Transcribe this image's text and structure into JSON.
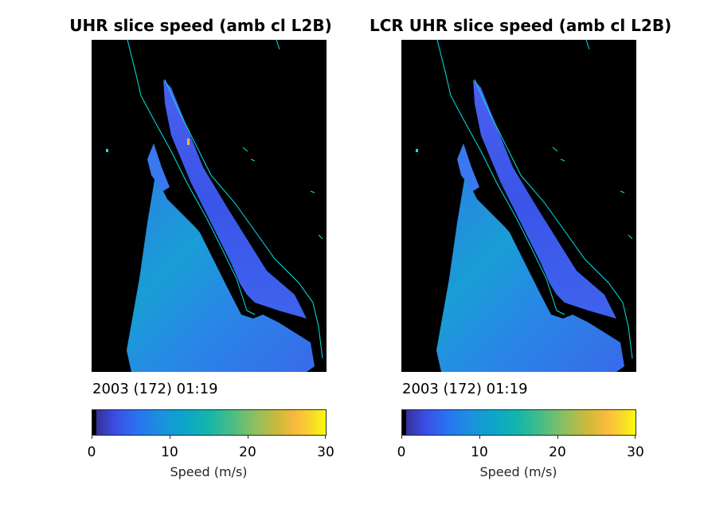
{
  "figure": {
    "colormap": "parula",
    "coast_color": "#00e5e5",
    "background_color": "#000000"
  },
  "panels": [
    {
      "title": "UHR slice speed (amb cl L2B)",
      "date_label": "2003 (172) 01:19"
    },
    {
      "title": "LCR UHR slice speed (amb cl L2B)",
      "date_label": "2003 (172) 01:19"
    }
  ],
  "chart_data": [
    {
      "type": "heatmap",
      "title": "UHR slice speed (amb cl L2B)",
      "annotation": "2003 (172) 01:19",
      "colorbar": {
        "label": "Speed (m/s)",
        "limits": [
          0,
          30
        ],
        "ticks": [
          0,
          10,
          20,
          30
        ],
        "tick_labels": [
          "0",
          "10",
          "20",
          "30"
        ]
      },
      "typical_speed_range": [
        6,
        10
      ]
    },
    {
      "type": "heatmap",
      "title": "LCR UHR slice speed (amb cl L2B)",
      "annotation": "2003 (172) 01:19",
      "colorbar": {
        "label": "Speed (m/s)",
        "limits": [
          0,
          30
        ],
        "ticks": [
          0,
          10,
          20,
          30
        ],
        "tick_labels": [
          "0",
          "10",
          "20",
          "30"
        ]
      },
      "typical_speed_range": [
        6,
        10
      ]
    }
  ]
}
